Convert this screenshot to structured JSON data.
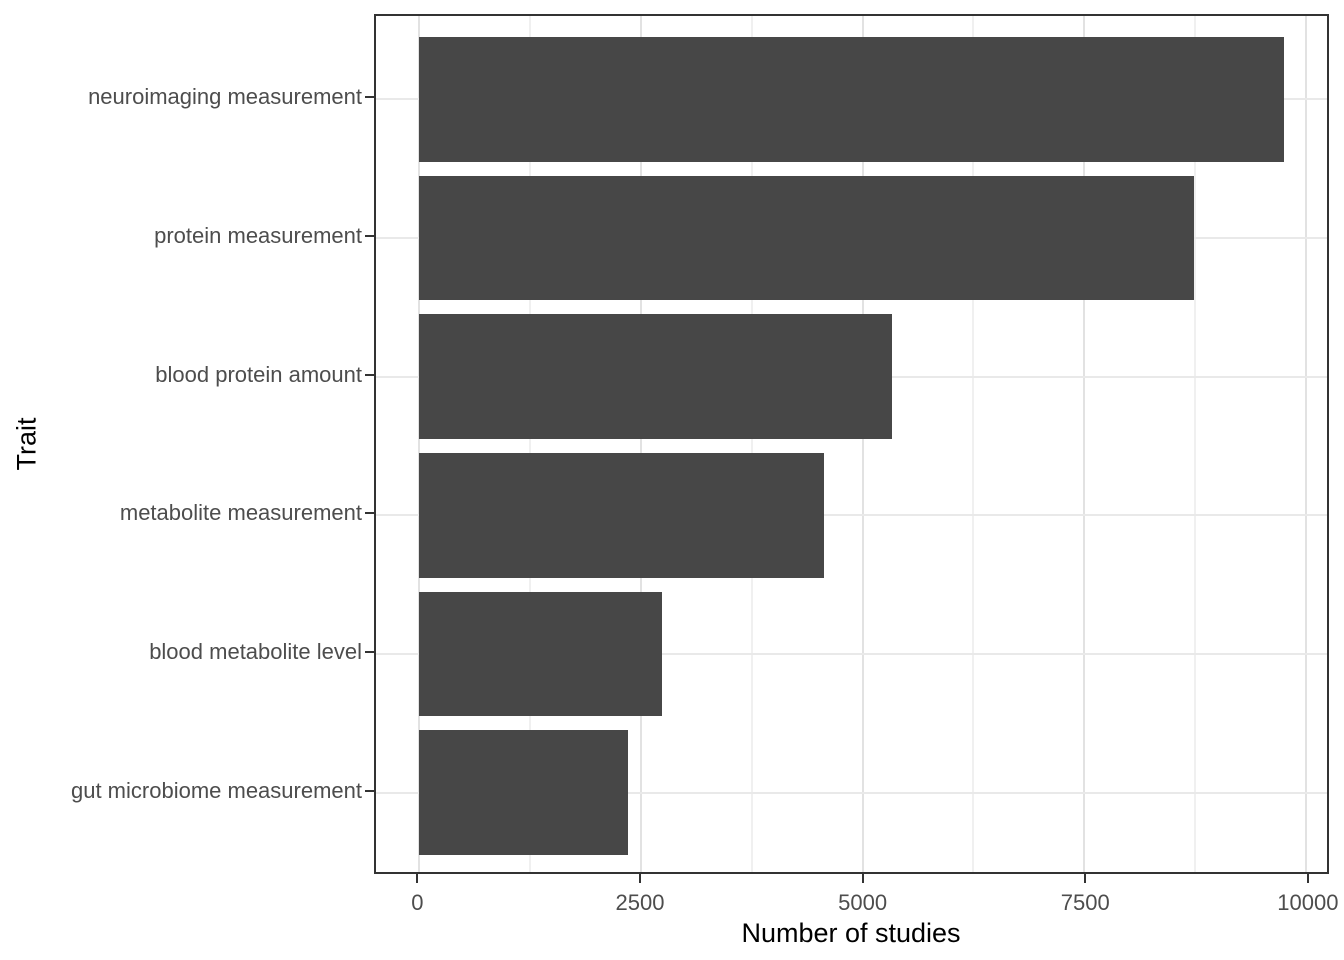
{
  "chart_data": {
    "type": "bar",
    "orientation": "horizontal",
    "title": "",
    "xlabel": "Number of studies",
    "ylabel": "Trait",
    "categories": [
      "neuroimaging measurement",
      "protein measurement",
      "blood protein amount",
      "metabolite measurement",
      "blood metabolite level",
      "gut microbiome measurement"
    ],
    "values": [
      9750,
      8740,
      5330,
      4560,
      2740,
      2350
    ],
    "x_ticks": [
      0,
      2500,
      5000,
      7500,
      10000
    ],
    "x_tick_labels": [
      "0",
      "2500",
      "5000",
      "7500",
      "10000"
    ],
    "x_minor_ticks": [
      1250,
      3750,
      6250,
      8750
    ],
    "xlim": [
      -487.5,
      10237.5
    ],
    "grid": true,
    "legend": false,
    "colors": {
      "bar": "#474747",
      "grid_major": "#e2e2e2",
      "grid_minor": "#f0f0f0",
      "panel_border": "#333333",
      "tick_mark": "#333333",
      "tick_label": "#4d4d4d",
      "axis_title": "#000000",
      "background": "#ffffff"
    }
  }
}
